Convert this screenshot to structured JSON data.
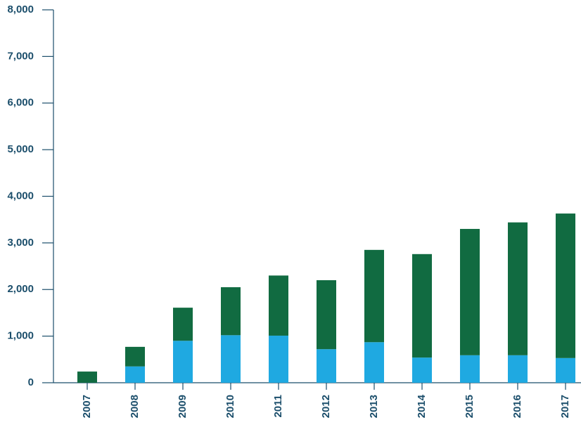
{
  "chart_data": {
    "type": "stacked_bar",
    "categories": [
      "2007",
      "2008",
      "2009",
      "2010",
      "2011",
      "2012",
      "2013",
      "2014",
      "2015",
      "2016",
      "2017"
    ],
    "series": [
      {
        "color": "#1fa9e1",
        "values": [
          0,
          350,
          900,
          1020,
          1010,
          720,
          870,
          540,
          590,
          590,
          530
        ]
      },
      {
        "color": "#116b41",
        "values": [
          240,
          420,
          710,
          1030,
          1290,
          1480,
          1980,
          2220,
          2710,
          2850,
          3100
        ]
      }
    ],
    "ylim": [
      0,
      8000
    ],
    "yticks": [
      0,
      {
        "value": 1000,
        "label": "1,000"
      },
      {
        "value": 2000,
        "label": "2,000"
      },
      {
        "value": 3000,
        "label": "3,000"
      },
      {
        "value": 4000,
        "label": "4,000"
      },
      {
        "value": 5000,
        "label": "5,000"
      },
      {
        "value": 6000,
        "label": "6,000"
      },
      {
        "value": 7000,
        "label": "7,000"
      },
      {
        "value": 8000,
        "label": "8,000"
      }
    ]
  }
}
